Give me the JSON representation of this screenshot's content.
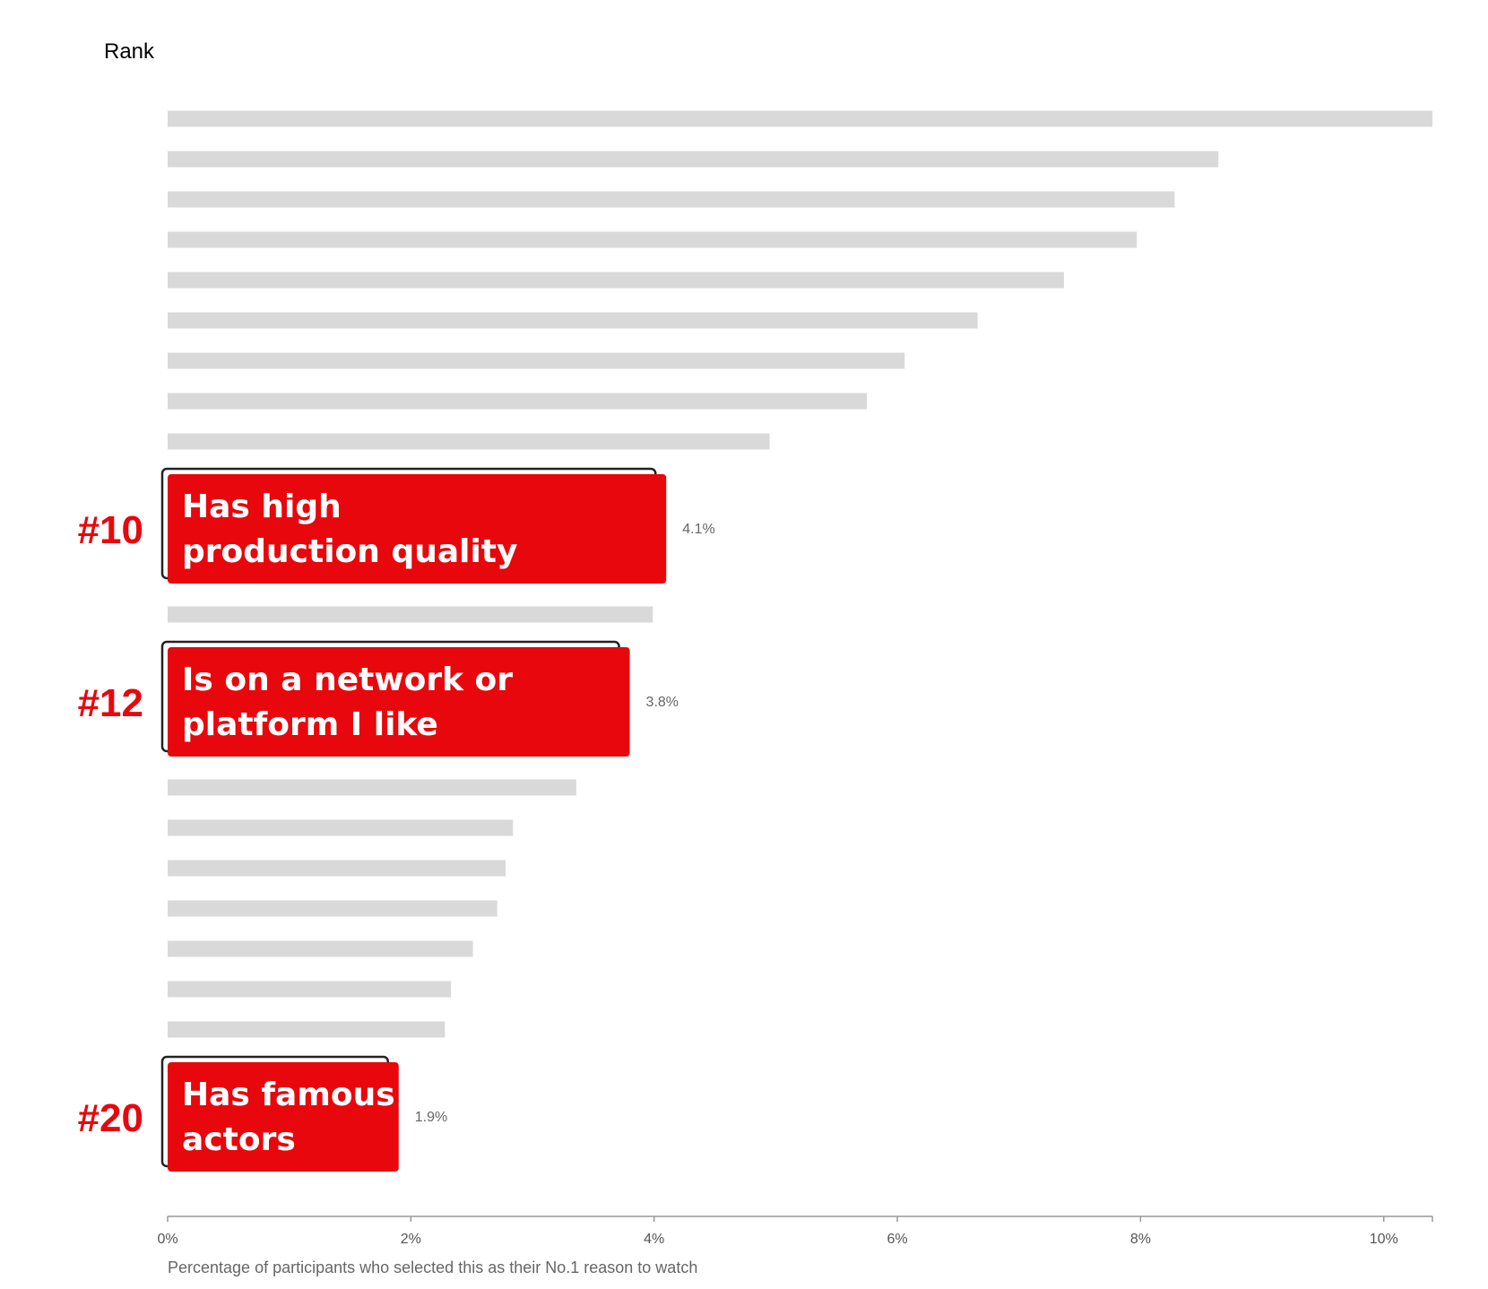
{
  "header": {
    "rank_title": "Rank"
  },
  "colors": {
    "highlight": "#e8070d",
    "muted": "#d9d9d9",
    "axis": "#999999",
    "outline": "#222222"
  },
  "chart_data": {
    "type": "bar",
    "orientation": "horizontal",
    "xlabel": "Percentage of participants who selected this as their No.1 reason to watch",
    "xlim": [
      0,
      10.4
    ],
    "xticks": [
      {
        "value": 0,
        "label": "0%"
      },
      {
        "value": 2,
        "label": "2%"
      },
      {
        "value": 4,
        "label": "4%"
      },
      {
        "value": 6,
        "label": "6%"
      },
      {
        "value": 8,
        "label": "8%"
      },
      {
        "value": 10,
        "label": "10%"
      }
    ],
    "bars": [
      {
        "rank": 1,
        "value": 10.4
      },
      {
        "rank": 2,
        "value": 8.64
      },
      {
        "rank": 3,
        "value": 8.28
      },
      {
        "rank": 4,
        "value": 7.97
      },
      {
        "rank": 5,
        "value": 7.37
      },
      {
        "rank": 6,
        "value": 6.66
      },
      {
        "rank": 7,
        "value": 6.06
      },
      {
        "rank": 8,
        "value": 5.75
      },
      {
        "rank": 9,
        "value": 4.95
      },
      {
        "rank": 10,
        "value": 4.1,
        "highlight": true,
        "rank_label": "#10",
        "label_lines": [
          "Has high",
          "production quality"
        ],
        "value_label": "4.1%"
      },
      {
        "rank": 11,
        "value": 3.99
      },
      {
        "rank": 12,
        "value": 3.8,
        "highlight": true,
        "rank_label": "#12",
        "label_lines": [
          "Is on a network or",
          "platform I like"
        ],
        "value_label": "3.8%"
      },
      {
        "rank": 13,
        "value": 3.36
      },
      {
        "rank": 14,
        "value": 2.84
      },
      {
        "rank": 15,
        "value": 2.78
      },
      {
        "rank": 16,
        "value": 2.71
      },
      {
        "rank": 17,
        "value": 2.51
      },
      {
        "rank": 18,
        "value": 2.33
      },
      {
        "rank": 19,
        "value": 2.28
      },
      {
        "rank": 20,
        "value": 1.9,
        "highlight": true,
        "rank_label": "#20",
        "label_lines": [
          "Has famous",
          "actors"
        ],
        "value_label": "1.9%"
      }
    ]
  }
}
